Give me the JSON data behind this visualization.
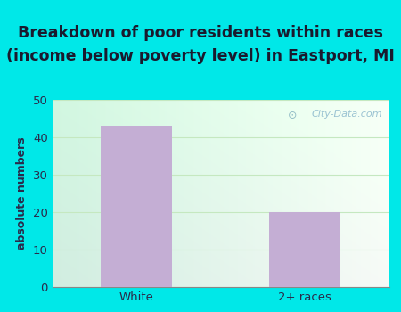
{
  "title_line1": "Breakdown of poor residents within races",
  "title_line2": "(income below poverty level) in Eastport, MI",
  "categories": [
    "White",
    "2+ races"
  ],
  "values": [
    43,
    20
  ],
  "bar_color": "#c4aed4",
  "ylabel": "absolute numbers",
  "ylim": [
    0,
    50
  ],
  "yticks": [
    0,
    10,
    20,
    30,
    40,
    50
  ],
  "title_fontsize": 12.5,
  "axis_label_fontsize": 9,
  "tick_fontsize": 9.5,
  "background_outer": "#00e8e8",
  "watermark_text": "City-Data.com",
  "bar_width": 0.42,
  "grid_color": "#c5e8c0",
  "title_color": "#1a1a2e",
  "tick_color": "#2a2a4a",
  "ylabel_color": "#2a2a4a"
}
